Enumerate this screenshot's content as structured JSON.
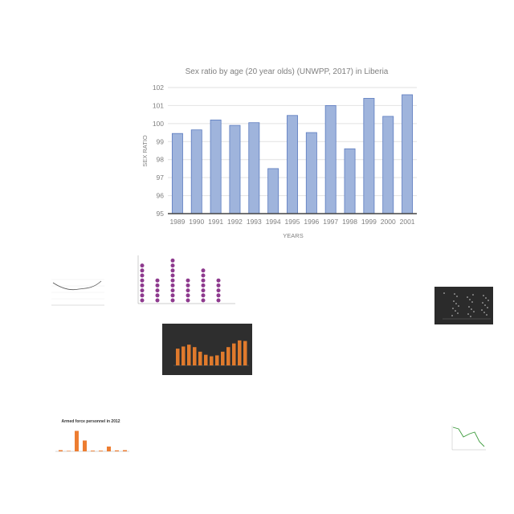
{
  "chart_data": {
    "type": "bar",
    "title": "Sex ratio by age (20 year olds) (UNWPP, 2017) in Liberia",
    "xlabel": "YEARS",
    "ylabel": "SEX RATIO",
    "categories": [
      "1989",
      "1990",
      "1991",
      "1992",
      "1993",
      "1994",
      "1995",
      "1996",
      "1997",
      "1998",
      "1999",
      "2000",
      "2001"
    ],
    "values": [
      99.45,
      99.65,
      100.2,
      99.9,
      100.05,
      97.5,
      100.45,
      99.5,
      101.0,
      98.6,
      101.4,
      100.4,
      101.6
    ],
    "ylim": [
      95,
      102
    ],
    "yticks": [
      95,
      96,
      97,
      98,
      99,
      100,
      101,
      102
    ],
    "grid": true,
    "colors": {
      "bar_fill": "#9fb4dc",
      "bar_stroke": "#5b7bbf",
      "grid": "#e2e2e2"
    }
  },
  "thumbnails": {
    "armed_force_title": "Armed force personnel in 2012"
  }
}
